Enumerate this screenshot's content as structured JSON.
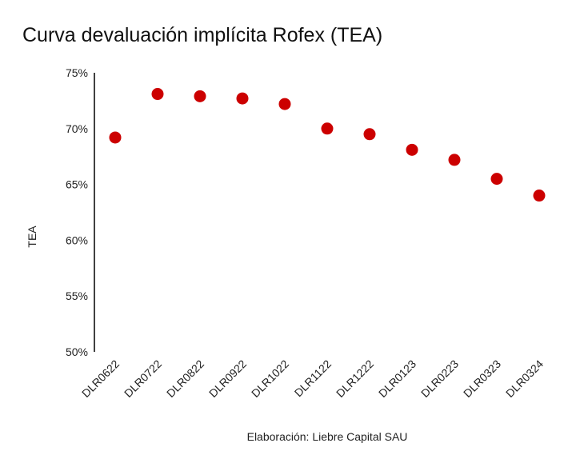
{
  "chart_data": {
    "type": "scatter",
    "title": "Curva devaluación implícita Rofex (TEA)",
    "ylabel": "TEA",
    "xlabel": "",
    "caption": "Elaboración: Liebre Capital SAU",
    "categories": [
      "DLR0622",
      "DLR0722",
      "DLR0822",
      "DLR0922",
      "DLR1022",
      "DLR1122",
      "DLR1222",
      "DLR0123",
      "DLR0223",
      "DLR0323",
      "DLR0324"
    ],
    "values": [
      69.2,
      73.1,
      72.9,
      72.7,
      72.2,
      70.0,
      69.5,
      68.1,
      67.2,
      65.5,
      64.0
    ],
    "ylim": [
      50,
      75
    ],
    "yticks": [
      50,
      55,
      60,
      65,
      70,
      75
    ],
    "ytick_suffix": "%",
    "grid": false,
    "marker_color": "#cc0000"
  }
}
